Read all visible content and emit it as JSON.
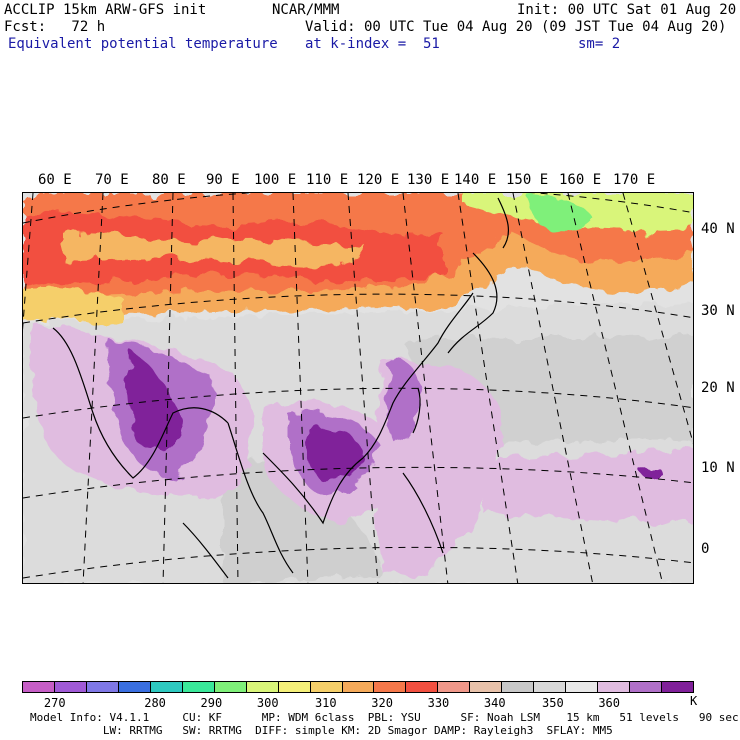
{
  "header": {
    "left_line1": "ACCLIP 15km ARW-GFS init",
    "center_line1": "NCAR/MMM",
    "right_line1": "Init: 00 UTC Sat 01 Aug 20",
    "left_line2": "Fcst:   72 h",
    "right_line2": "Valid: 00 UTC Tue 04 Aug 20 (09 JST Tue 04 Aug 20)",
    "variable": "Equivalent potential temperature",
    "level": "at k-index =  51",
    "smoothing": "sm= 2"
  },
  "longitude_labels": [
    "60 E",
    "70 E",
    "80 E",
    "90 E",
    "100 E",
    "110 E",
    "120 E",
    "130 E",
    "140 E",
    "150 E",
    "160 E",
    "170 E"
  ],
  "latitude_labels": [
    "40 N",
    "30 N",
    "20 N",
    "10 N",
    "0"
  ],
  "colorbar": {
    "unit": "K",
    "tick_labels": [
      "270",
      "280",
      "290",
      "300",
      "310",
      "320",
      "330",
      "340",
      "350",
      "360"
    ],
    "colors": [
      "#c65ec6",
      "#a05ad6",
      "#7f78e6",
      "#3a6fe0",
      "#2ec9c0",
      "#3ae89a",
      "#7ff07a",
      "#d9f57a",
      "#f5f07a",
      "#f5cf6a",
      "#f5aa5a",
      "#f5784a",
      "#f25040",
      "#f0988a",
      "#e8c2aa",
      "#c8c8c8",
      "#d8d8d8",
      "#e8e8e8",
      "#e0bce0",
      "#b070c8",
      "#80209a"
    ]
  },
  "footer": {
    "line1": "Model Info: V4.1.1     CU: KF      MP: WDM 6class  PBL: YSU      SF: Noah LSM    15 km   51 levels   90 sec",
    "line2": "           LW: RRTMG   SW: RRTMG  DIFF: simple KM: 2D Smagor DAMP: Rayleigh3  SFLAY: MM5"
  }
}
